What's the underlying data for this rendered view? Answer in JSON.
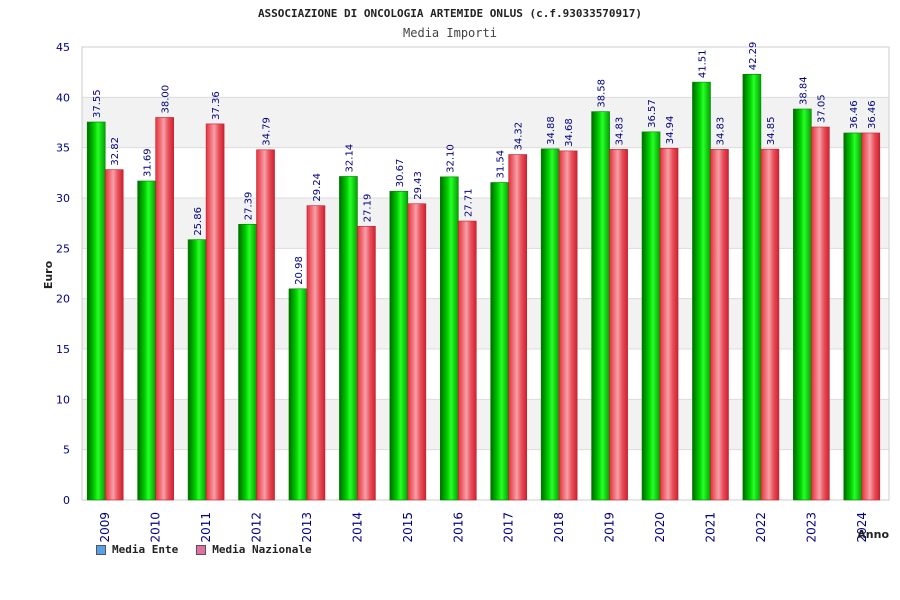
{
  "title": "ASSOCIAZIONE DI ONCOLOGIA ARTEMIDE ONLUS (c.f.93033570917)",
  "subtitle": "Media Importi",
  "colors": {
    "series1": "#00c000",
    "series2": "#e8303a",
    "legend1": "#5aa0e6",
    "legend2": "#e070a0",
    "band": "#f2f2f2",
    "text": "#000080"
  },
  "chart_data": {
    "type": "bar",
    "title": "ASSOCIAZIONE DI ONCOLOGIA ARTEMIDE ONLUS (c.f.93033570917)",
    "subtitle": "Media Importi",
    "xlabel": "Anno",
    "ylabel": "Euro",
    "ylim": [
      0,
      45
    ],
    "yticks": [
      0,
      5,
      10,
      15,
      20,
      25,
      30,
      35,
      40,
      45
    ],
    "grid": true,
    "legend_position": "bottom-left",
    "categories": [
      "2009",
      "2010",
      "2011",
      "2012",
      "2013",
      "2014",
      "2015",
      "2016",
      "2017",
      "2018",
      "2019",
      "2020",
      "2021",
      "2022",
      "2023",
      "2024"
    ],
    "series": [
      {
        "name": "Media Ente",
        "values": [
          37.55,
          31.69,
          25.86,
          27.39,
          20.98,
          32.14,
          30.67,
          32.1,
          31.54,
          34.88,
          38.58,
          36.57,
          41.51,
          42.29,
          38.84,
          36.46
        ]
      },
      {
        "name": "Media Nazionale",
        "values": [
          32.82,
          38.0,
          37.36,
          34.79,
          29.24,
          27.19,
          29.43,
          27.71,
          34.32,
          34.68,
          34.83,
          34.94,
          34.83,
          34.85,
          37.05,
          36.46
        ]
      }
    ]
  },
  "legend": [
    {
      "label": "Media Ente"
    },
    {
      "label": "Media Nazionale"
    }
  ]
}
